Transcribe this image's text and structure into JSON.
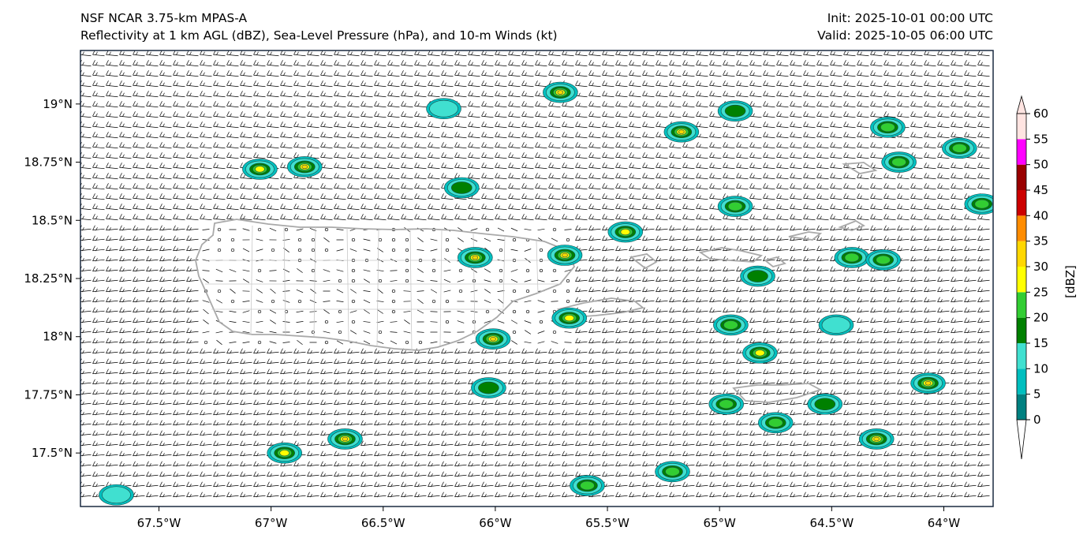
{
  "title": {
    "left_line1": "NSF NCAR 3.75-km MPAS-A",
    "left_line2": "Reflectivity at 1 km AGL (dBZ), Sea-Level Pressure (hPa), and 10-m Winds (kt)",
    "right_line1": "Init: 2025-10-01 00:00 UTC",
    "right_line2": "Valid: 2025-10-05 06:00 UTC"
  },
  "axes": {
    "lon_range": [
      -67.85,
      -63.78
    ],
    "lat_range": [
      17.27,
      19.23
    ],
    "lon_ticks": [
      {
        "value": -67.5,
        "label": "67.5°W"
      },
      {
        "value": -67.0,
        "label": "67°W"
      },
      {
        "value": -66.5,
        "label": "66.5°W"
      },
      {
        "value": -66.0,
        "label": "66°W"
      },
      {
        "value": -65.5,
        "label": "65.5°W"
      },
      {
        "value": -65.0,
        "label": "65°W"
      },
      {
        "value": -64.5,
        "label": "64.5°W"
      },
      {
        "value": -64.0,
        "label": "64°W"
      }
    ],
    "lat_ticks": [
      {
        "value": 19.0,
        "label": "19°N"
      },
      {
        "value": 18.75,
        "label": "18.75°N"
      },
      {
        "value": 18.5,
        "label": "18.5°N"
      },
      {
        "value": 18.25,
        "label": "18.25°N"
      },
      {
        "value": 18.0,
        "label": "18°N"
      },
      {
        "value": 17.75,
        "label": "17.75°N"
      },
      {
        "value": 17.5,
        "label": "17.5°N"
      }
    ]
  },
  "colorbar": {
    "label": "[dBZ]",
    "ticks": [
      "0",
      "5",
      "10",
      "15",
      "20",
      "25",
      "30",
      "35",
      "40",
      "45",
      "50",
      "55",
      "60"
    ],
    "colors": [
      "#008080",
      "#00bfbf",
      "#40e0d0",
      "#008000",
      "#32cd32",
      "#ffff00",
      "#ffd700",
      "#ff8c00",
      "#cc0000",
      "#990000",
      "#ff00ff",
      "#ffe4e1"
    ]
  },
  "echoes": [
    {
      "lon": -65.71,
      "lat": 19.05,
      "max_dbz": 30
    },
    {
      "lon": -67.05,
      "lat": 18.72,
      "max_dbz": 25
    },
    {
      "lon": -66.85,
      "lat": 18.73,
      "max_dbz": 30
    },
    {
      "lon": -65.17,
      "lat": 18.88,
      "max_dbz": 30
    },
    {
      "lon": -64.93,
      "lat": 18.97,
      "max_dbz": 15
    },
    {
      "lon": -64.25,
      "lat": 18.9,
      "max_dbz": 20
    },
    {
      "lon": -63.93,
      "lat": 18.81,
      "max_dbz": 20
    },
    {
      "lon": -64.2,
      "lat": 18.75,
      "max_dbz": 20
    },
    {
      "lon": -66.15,
      "lat": 18.64,
      "max_dbz": 15
    },
    {
      "lon": -64.93,
      "lat": 18.56,
      "max_dbz": 20
    },
    {
      "lon": -65.42,
      "lat": 18.45,
      "max_dbz": 25
    },
    {
      "lon": -66.09,
      "lat": 18.34,
      "max_dbz": 30
    },
    {
      "lon": -65.69,
      "lat": 18.35,
      "max_dbz": 30
    },
    {
      "lon": -64.41,
      "lat": 18.34,
      "max_dbz": 20
    },
    {
      "lon": -64.27,
      "lat": 18.33,
      "max_dbz": 20
    },
    {
      "lon": -64.83,
      "lat": 18.26,
      "max_dbz": 15
    },
    {
      "lon": -63.83,
      "lat": 18.57,
      "max_dbz": 20
    },
    {
      "lon": -65.67,
      "lat": 18.08,
      "max_dbz": 25
    },
    {
      "lon": -64.95,
      "lat": 18.05,
      "max_dbz": 20
    },
    {
      "lon": -66.01,
      "lat": 17.99,
      "max_dbz": 30
    },
    {
      "lon": -64.82,
      "lat": 17.93,
      "max_dbz": 25
    },
    {
      "lon": -64.07,
      "lat": 17.8,
      "max_dbz": 30
    },
    {
      "lon": -66.03,
      "lat": 17.78,
      "max_dbz": 15
    },
    {
      "lon": -64.97,
      "lat": 17.71,
      "max_dbz": 20
    },
    {
      "lon": -64.75,
      "lat": 17.63,
      "max_dbz": 20
    },
    {
      "lon": -64.53,
      "lat": 17.71,
      "max_dbz": 15
    },
    {
      "lon": -64.3,
      "lat": 17.56,
      "max_dbz": 30
    },
    {
      "lon": -66.67,
      "lat": 17.56,
      "max_dbz": 30
    },
    {
      "lon": -66.94,
      "lat": 17.5,
      "max_dbz": 25
    },
    {
      "lon": -65.21,
      "lat": 17.42,
      "max_dbz": 20
    },
    {
      "lon": -65.59,
      "lat": 17.36,
      "max_dbz": 20
    },
    {
      "lon": -67.69,
      "lat": 17.32,
      "max_dbz": 10
    },
    {
      "lon": -66.23,
      "lat": 18.98,
      "max_dbz": 10
    },
    {
      "lon": -64.48,
      "lat": 18.05,
      "max_dbz": 10
    }
  ]
}
